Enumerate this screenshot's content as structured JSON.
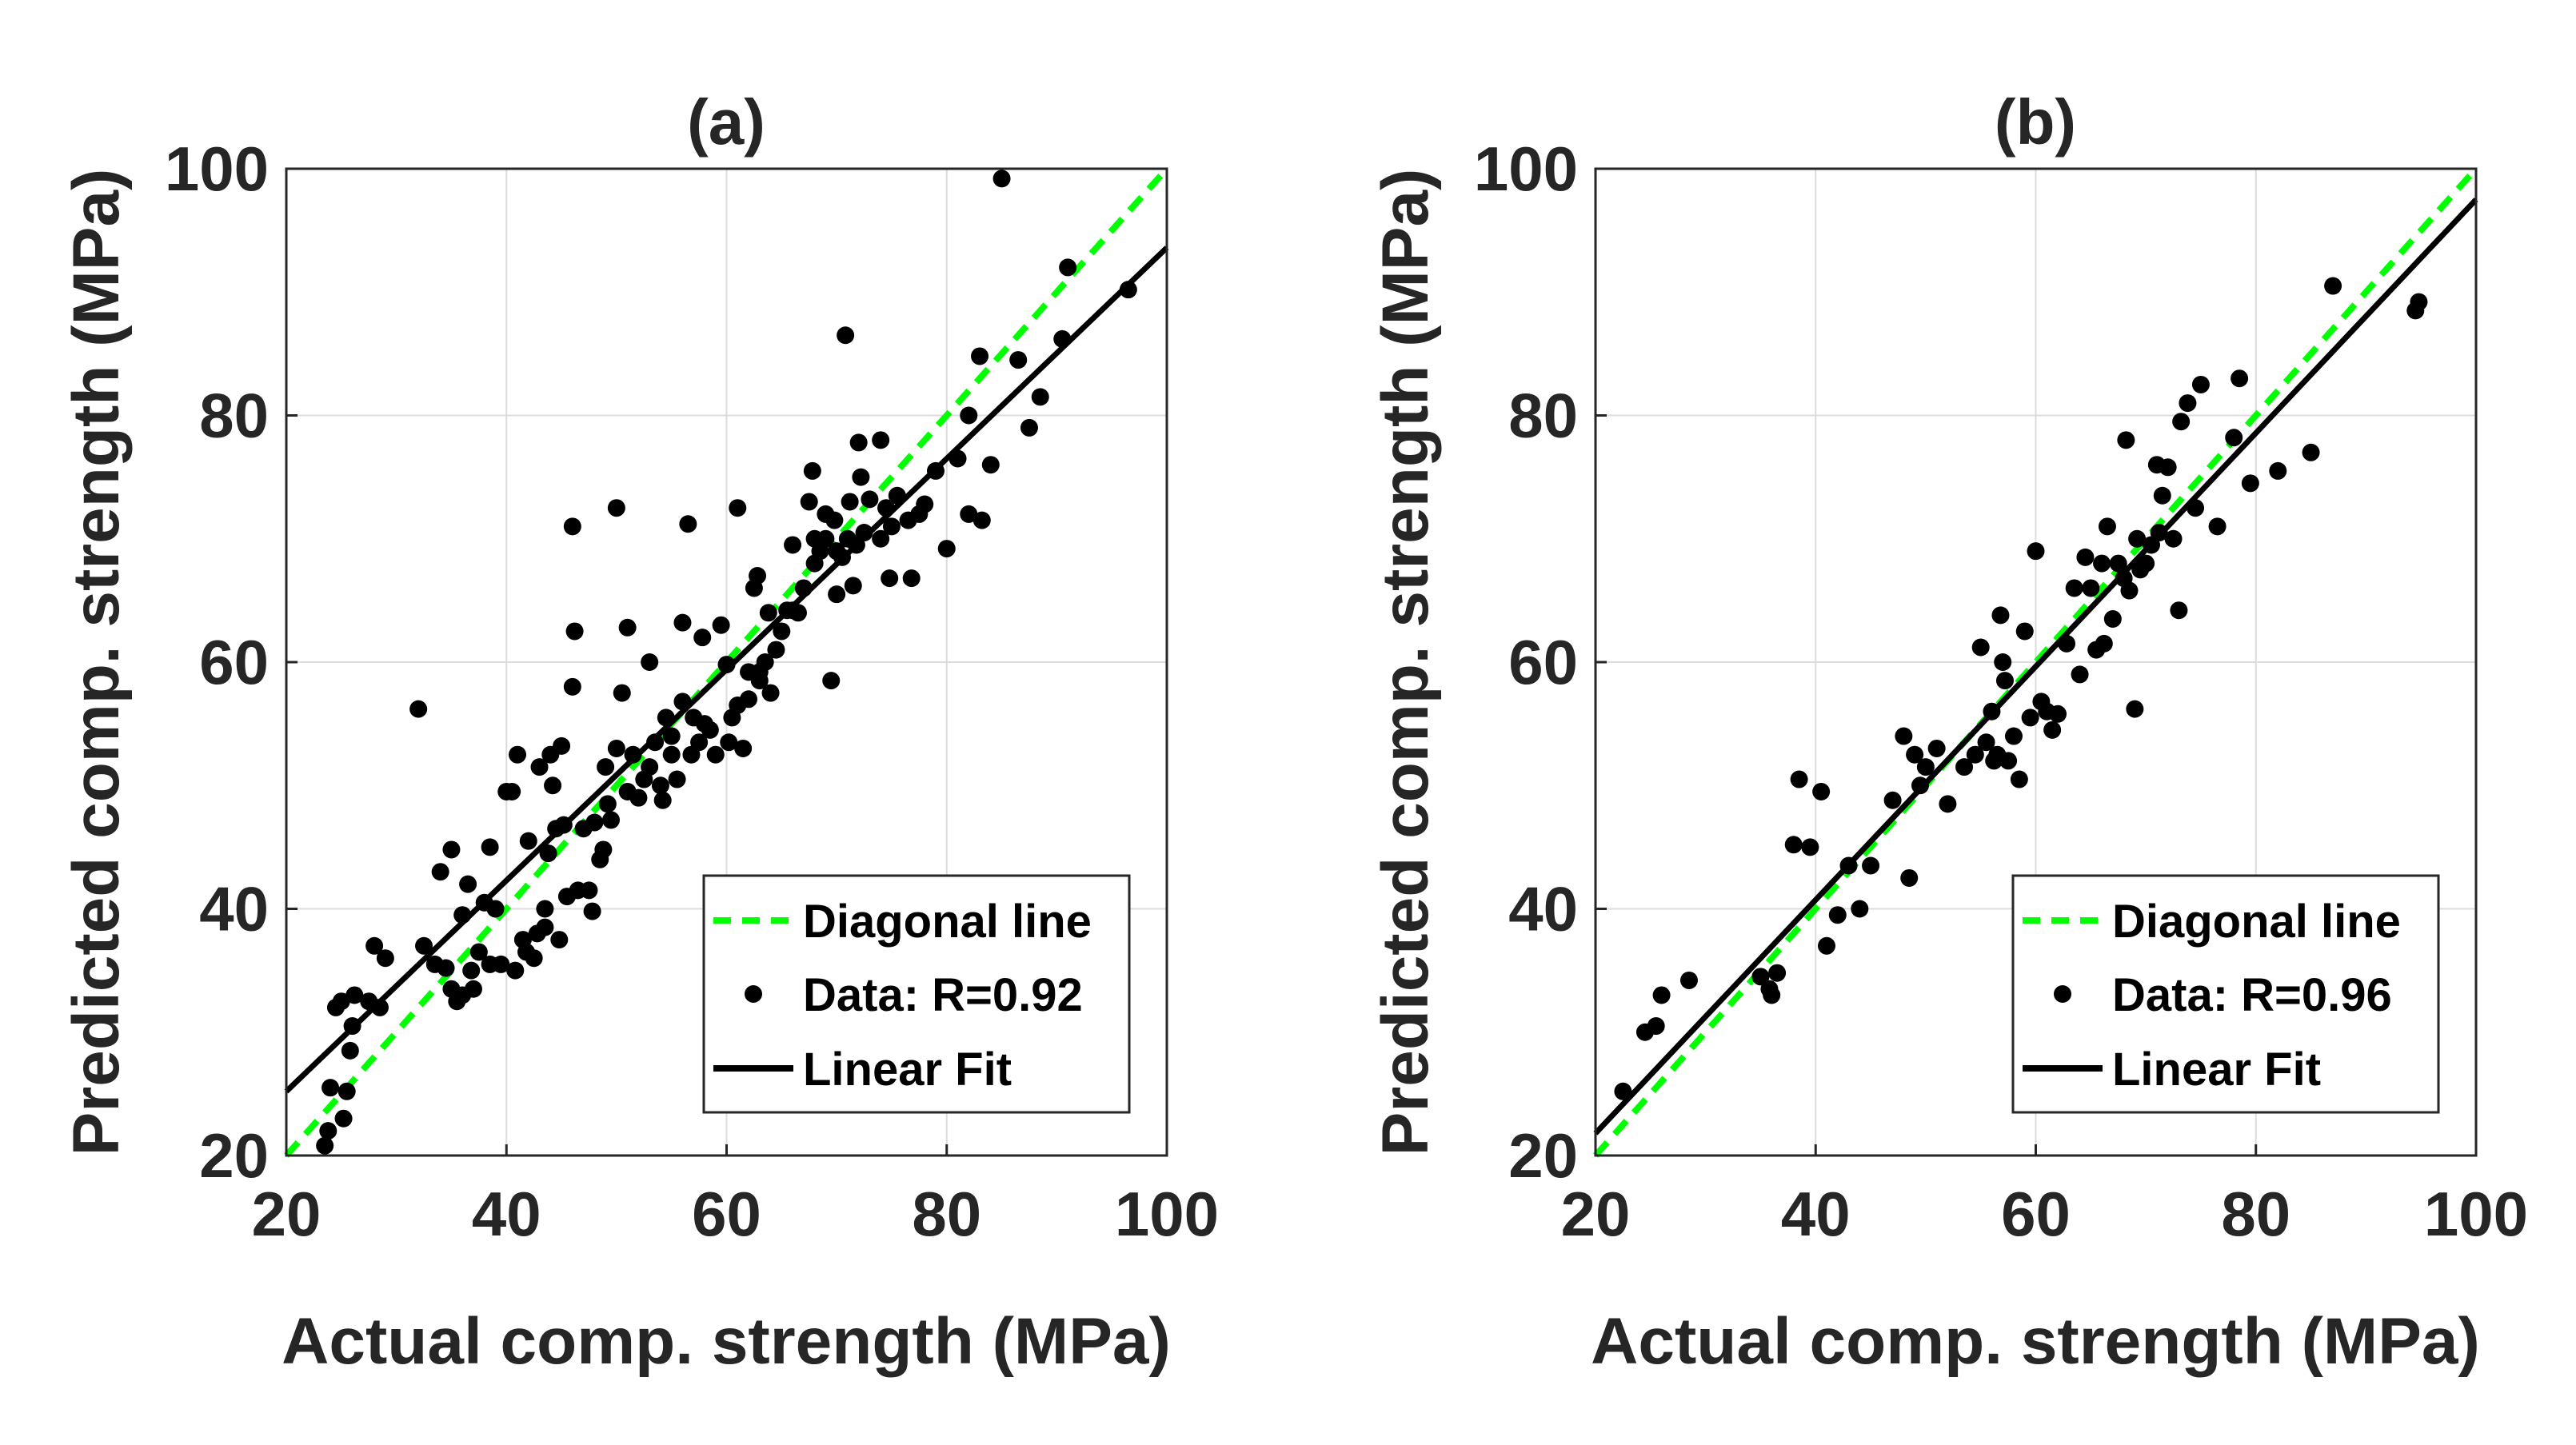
{
  "chart_data": [
    {
      "type": "scatter",
      "title": "(a)",
      "xlabel": "Actual comp. strength (MPa)",
      "ylabel": "Predicted comp. strength (MPa)",
      "xlim": [
        20,
        100
      ],
      "ylim": [
        20,
        100
      ],
      "xticks": [
        20,
        40,
        60,
        80,
        100
      ],
      "yticks": [
        20,
        40,
        60,
        80,
        100
      ],
      "grid": true,
      "legend_position": "bottom-right",
      "legend": [
        "Diagonal line",
        "Data: R=0.92",
        "Linear Fit"
      ],
      "colors": {
        "diagonal": "#00ff00",
        "data": "#000000",
        "fit": "#000000"
      },
      "diagonal": [
        [
          20,
          20
        ],
        [
          100,
          100
        ]
      ],
      "fit": [
        [
          20,
          25.2
        ],
        [
          100,
          93.6
        ]
      ],
      "points": [
        [
          23.5,
          20.8
        ],
        [
          23.8,
          22.0
        ],
        [
          24.0,
          25.5
        ],
        [
          24.5,
          32.0
        ],
        [
          25.2,
          23.0
        ],
        [
          25.5,
          25.2
        ],
        [
          25.8,
          28.5
        ],
        [
          26.0,
          30.5
        ],
        [
          25.0,
          32.5
        ],
        [
          26.2,
          33.0
        ],
        [
          27.5,
          32.5
        ],
        [
          28.0,
          37.0
        ],
        [
          28.5,
          32.0
        ],
        [
          29.0,
          36.0
        ],
        [
          32.0,
          56.2
        ],
        [
          32.5,
          37.0
        ],
        [
          33.5,
          35.5
        ],
        [
          34.0,
          43.0
        ],
        [
          34.5,
          35.2
        ],
        [
          35.0,
          33.5
        ],
        [
          35.0,
          44.8
        ],
        [
          35.5,
          32.5
        ],
        [
          36.0,
          39.5
        ],
        [
          36.0,
          33.0
        ],
        [
          36.5,
          42.0
        ],
        [
          36.8,
          35.0
        ],
        [
          37.0,
          33.5
        ],
        [
          37.5,
          36.5
        ],
        [
          38.0,
          40.5
        ],
        [
          38.5,
          45.0
        ],
        [
          38.5,
          35.5
        ],
        [
          39.0,
          40.0
        ],
        [
          39.5,
          35.5
        ],
        [
          40.0,
          49.5
        ],
        [
          40.5,
          49.5
        ],
        [
          40.8,
          35.0
        ],
        [
          41.0,
          52.5
        ],
        [
          41.5,
          37.5
        ],
        [
          41.8,
          36.5
        ],
        [
          42.0,
          45.5
        ],
        [
          42.5,
          36.0
        ],
        [
          42.8,
          38.0
        ],
        [
          43.0,
          51.5
        ],
        [
          43.5,
          38.5
        ],
        [
          43.5,
          40.0
        ],
        [
          43.8,
          44.5
        ],
        [
          44.0,
          52.5
        ],
        [
          44.2,
          50.0
        ],
        [
          44.5,
          46.5
        ],
        [
          44.8,
          37.5
        ],
        [
          45.0,
          53.2
        ],
        [
          45.2,
          46.8
        ],
        [
          45.5,
          41.0
        ],
        [
          46.0,
          58.0
        ],
        [
          46.0,
          71.0
        ],
        [
          46.2,
          62.5
        ],
        [
          46.5,
          41.5
        ],
        [
          47.0,
          46.5
        ],
        [
          47.5,
          41.5
        ],
        [
          47.8,
          39.8
        ],
        [
          48.0,
          47.0
        ],
        [
          48.5,
          44.0
        ],
        [
          48.8,
          44.8
        ],
        [
          49.0,
          51.5
        ],
        [
          49.2,
          48.5
        ],
        [
          49.5,
          47.2
        ],
        [
          50.0,
          53.0
        ],
        [
          50.0,
          72.5
        ],
        [
          50.5,
          57.5
        ],
        [
          51.0,
          62.8
        ],
        [
          51.0,
          49.5
        ],
        [
          51.5,
          52.5
        ],
        [
          52.0,
          49.0
        ],
        [
          52.5,
          50.5
        ],
        [
          53.0,
          51.5
        ],
        [
          53.0,
          60.0
        ],
        [
          53.5,
          53.5
        ],
        [
          54.0,
          50.0
        ],
        [
          54.2,
          48.8
        ],
        [
          54.5,
          55.5
        ],
        [
          55.0,
          54.0
        ],
        [
          55.0,
          52.5
        ],
        [
          55.5,
          50.5
        ],
        [
          56.0,
          56.8
        ],
        [
          56.0,
          63.2
        ],
        [
          56.5,
          71.2
        ],
        [
          56.8,
          52.5
        ],
        [
          57.0,
          55.5
        ],
        [
          57.5,
          53.5
        ],
        [
          57.8,
          62.0
        ],
        [
          58.0,
          55.0
        ],
        [
          58.5,
          54.5
        ],
        [
          59.0,
          52.5
        ],
        [
          59.5,
          63.0
        ],
        [
          60.0,
          59.8
        ],
        [
          60.2,
          53.5
        ],
        [
          60.5,
          55.5
        ],
        [
          61.0,
          72.5
        ],
        [
          61.0,
          56.5
        ],
        [
          61.5,
          53.0
        ],
        [
          62.0,
          59.2
        ],
        [
          62.0,
          57.0
        ],
        [
          62.5,
          66.0
        ],
        [
          62.8,
          67.0
        ],
        [
          63.0,
          59.2
        ],
        [
          63.0,
          58.5
        ],
        [
          63.5,
          60.0
        ],
        [
          63.8,
          64.0
        ],
        [
          64.0,
          57.5
        ],
        [
          64.5,
          61.0
        ],
        [
          65.0,
          62.5
        ],
        [
          65.5,
          64.2
        ],
        [
          66.0,
          69.5
        ],
        [
          66.0,
          64.2
        ],
        [
          66.5,
          64.0
        ],
        [
          67.0,
          66.0
        ],
        [
          67.5,
          73.0
        ],
        [
          67.8,
          75.5
        ],
        [
          68.0,
          68.0
        ],
        [
          68.0,
          70.0
        ],
        [
          68.5,
          69.0
        ],
        [
          69.0,
          70.0
        ],
        [
          69.0,
          72.0
        ],
        [
          69.5,
          58.5
        ],
        [
          69.8,
          71.5
        ],
        [
          70.0,
          65.5
        ],
        [
          70.0,
          69.0
        ],
        [
          70.5,
          68.5
        ],
        [
          70.8,
          86.5
        ],
        [
          71.0,
          70.0
        ],
        [
          71.2,
          73.0
        ],
        [
          71.5,
          66.2
        ],
        [
          71.8,
          69.5
        ],
        [
          72.0,
          77.8
        ],
        [
          72.2,
          75.0
        ],
        [
          72.5,
          70.5
        ],
        [
          73.0,
          73.2
        ],
        [
          74.0,
          70.0
        ],
        [
          74.0,
          78.0
        ],
        [
          74.5,
          72.5
        ],
        [
          74.8,
          66.8
        ],
        [
          75.0,
          71.0
        ],
        [
          75.5,
          73.5
        ],
        [
          76.5,
          71.5
        ],
        [
          76.8,
          66.8
        ],
        [
          77.5,
          72.0
        ],
        [
          78.0,
          72.8
        ],
        [
          79.0,
          75.5
        ],
        [
          80.0,
          69.2
        ],
        [
          81.0,
          76.5
        ],
        [
          82.0,
          80.0
        ],
        [
          82.0,
          72.0
        ],
        [
          83.0,
          84.8
        ],
        [
          83.2,
          71.5
        ],
        [
          84.0,
          76.0
        ],
        [
          85.0,
          99.2
        ],
        [
          86.5,
          84.5
        ],
        [
          87.5,
          79.0
        ],
        [
          88.5,
          81.5
        ],
        [
          90.5,
          86.2
        ],
        [
          91.0,
          92.0
        ],
        [
          96.5,
          90.2
        ]
      ]
    },
    {
      "type": "scatter",
      "title": "(b)",
      "xlabel": "Actual comp. strength (MPa)",
      "ylabel": "Predicted comp. strength (MPa)",
      "xlim": [
        20,
        100
      ],
      "ylim": [
        20,
        100
      ],
      "xticks": [
        20,
        40,
        60,
        80,
        100
      ],
      "yticks": [
        20,
        40,
        60,
        80,
        100
      ],
      "grid": true,
      "legend_position": "bottom-right",
      "legend": [
        "Diagonal line",
        "Data: R=0.96",
        "Linear Fit"
      ],
      "colors": {
        "diagonal": "#00ff00",
        "data": "#000000",
        "fit": "#000000"
      },
      "diagonal": [
        [
          20,
          20
        ],
        [
          100,
          100
        ]
      ],
      "fit": [
        [
          20,
          21.8
        ],
        [
          100,
          97.5
        ]
      ],
      "points": [
        [
          22.5,
          25.2
        ],
        [
          24.5,
          30.0
        ],
        [
          25.5,
          30.5
        ],
        [
          26.0,
          33.0
        ],
        [
          28.5,
          34.2
        ],
        [
          35.0,
          34.5
        ],
        [
          35.8,
          33.5
        ],
        [
          36.0,
          33.0
        ],
        [
          36.5,
          34.8
        ],
        [
          38.0,
          45.2
        ],
        [
          38.5,
          50.5
        ],
        [
          39.5,
          45.0
        ],
        [
          40.5,
          49.5
        ],
        [
          41.0,
          37.0
        ],
        [
          42.0,
          39.5
        ],
        [
          43.0,
          43.5
        ],
        [
          44.0,
          40.0
        ],
        [
          45.0,
          43.5
        ],
        [
          47.0,
          48.8
        ],
        [
          48.0,
          54.0
        ],
        [
          48.5,
          42.5
        ],
        [
          49.0,
          52.5
        ],
        [
          49.5,
          50.0
        ],
        [
          50.0,
          51.5
        ],
        [
          51.0,
          53.0
        ],
        [
          52.0,
          48.5
        ],
        [
          53.5,
          51.5
        ],
        [
          54.5,
          52.5
        ],
        [
          55.0,
          61.2
        ],
        [
          55.5,
          53.5
        ],
        [
          56.0,
          56.0
        ],
        [
          56.2,
          52.0
        ],
        [
          56.5,
          52.5
        ],
        [
          56.8,
          63.8
        ],
        [
          57.0,
          60.0
        ],
        [
          57.2,
          58.5
        ],
        [
          57.5,
          52.0
        ],
        [
          58.0,
          54.0
        ],
        [
          58.5,
          50.5
        ],
        [
          59.0,
          62.5
        ],
        [
          59.5,
          55.5
        ],
        [
          60.0,
          69.0
        ],
        [
          60.5,
          56.8
        ],
        [
          61.0,
          56.0
        ],
        [
          61.5,
          54.5
        ],
        [
          62.0,
          55.8
        ],
        [
          62.8,
          61.5
        ],
        [
          63.5,
          66.0
        ],
        [
          64.0,
          59.0
        ],
        [
          64.5,
          68.5
        ],
        [
          65.0,
          66.0
        ],
        [
          65.5,
          61.0
        ],
        [
          66.0,
          68.0
        ],
        [
          66.2,
          61.5
        ],
        [
          66.5,
          71.0
        ],
        [
          67.0,
          63.5
        ],
        [
          67.5,
          68.0
        ],
        [
          68.0,
          66.8
        ],
        [
          68.2,
          78.0
        ],
        [
          68.5,
          65.8
        ],
        [
          69.0,
          56.2
        ],
        [
          69.2,
          70.0
        ],
        [
          69.5,
          67.5
        ],
        [
          70.0,
          68.0
        ],
        [
          70.5,
          69.5
        ],
        [
          71.0,
          76.0
        ],
        [
          71.2,
          70.5
        ],
        [
          71.5,
          73.5
        ],
        [
          72.0,
          75.8
        ],
        [
          72.5,
          70.0
        ],
        [
          73.0,
          64.2
        ],
        [
          73.2,
          79.5
        ],
        [
          73.8,
          81.0
        ],
        [
          74.5,
          72.5
        ],
        [
          75.0,
          82.5
        ],
        [
          76.5,
          71.0
        ],
        [
          78.0,
          78.2
        ],
        [
          78.5,
          83.0
        ],
        [
          79.5,
          74.5
        ],
        [
          82.0,
          75.5
        ],
        [
          85.0,
          77.0
        ],
        [
          87.0,
          90.5
        ],
        [
          94.5,
          88.5
        ],
        [
          94.8,
          89.2
        ]
      ]
    }
  ]
}
